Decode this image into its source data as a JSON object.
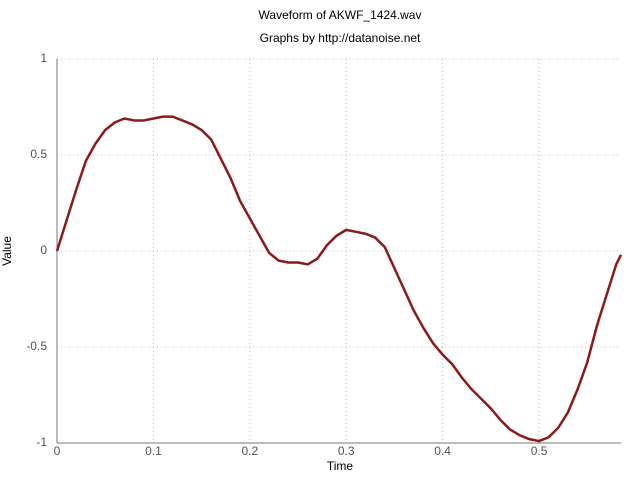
{
  "chart_data": {
    "type": "line",
    "title": "Waveform of AKWF_1424.wav",
    "subtitle": "Graphs by http://datanoise.net",
    "x_label": "Time",
    "y_label": "Value",
    "color": "#8b1a1a",
    "grid": true,
    "xlim": [
      0,
      0.585
    ],
    "ylim": [
      -1,
      1
    ],
    "xticks": [
      0,
      0.1,
      0.2,
      0.3,
      0.4,
      0.5
    ],
    "yticks": [
      -1,
      -0.5,
      0,
      0.5,
      1
    ],
    "x": [
      0,
      0.01,
      0.02,
      0.03,
      0.04,
      0.05,
      0.06,
      0.07,
      0.08,
      0.09,
      0.1,
      0.11,
      0.12,
      0.13,
      0.14,
      0.15,
      0.16,
      0.17,
      0.18,
      0.19,
      0.2,
      0.21,
      0.22,
      0.23,
      0.24,
      0.25,
      0.26,
      0.27,
      0.28,
      0.29,
      0.3,
      0.31,
      0.32,
      0.33,
      0.34,
      0.35,
      0.36,
      0.37,
      0.38,
      0.39,
      0.4,
      0.41,
      0.42,
      0.43,
      0.44,
      0.45,
      0.46,
      0.47,
      0.48,
      0.49,
      0.5,
      0.51,
      0.52,
      0.53,
      0.54,
      0.55,
      0.56,
      0.57,
      0.58,
      0.585
    ],
    "values": [
      0,
      0.16,
      0.32,
      0.47,
      0.56,
      0.63,
      0.67,
      0.69,
      0.68,
      0.68,
      0.69,
      0.7,
      0.7,
      0.68,
      0.66,
      0.63,
      0.58,
      0.48,
      0.38,
      0.26,
      0.17,
      0.08,
      -0.01,
      -0.05,
      -0.06,
      -0.06,
      -0.07,
      -0.04,
      0.03,
      0.08,
      0.11,
      0.1,
      0.09,
      0.07,
      0.02,
      -0.09,
      -0.2,
      -0.31,
      -0.4,
      -0.48,
      -0.54,
      -0.59,
      -0.66,
      -0.72,
      -0.77,
      -0.82,
      -0.88,
      -0.93,
      -0.96,
      -0.98,
      -0.99,
      -0.97,
      -0.92,
      -0.84,
      -0.72,
      -0.58,
      -0.39,
      -0.23,
      -0.07,
      -0.02
    ]
  }
}
